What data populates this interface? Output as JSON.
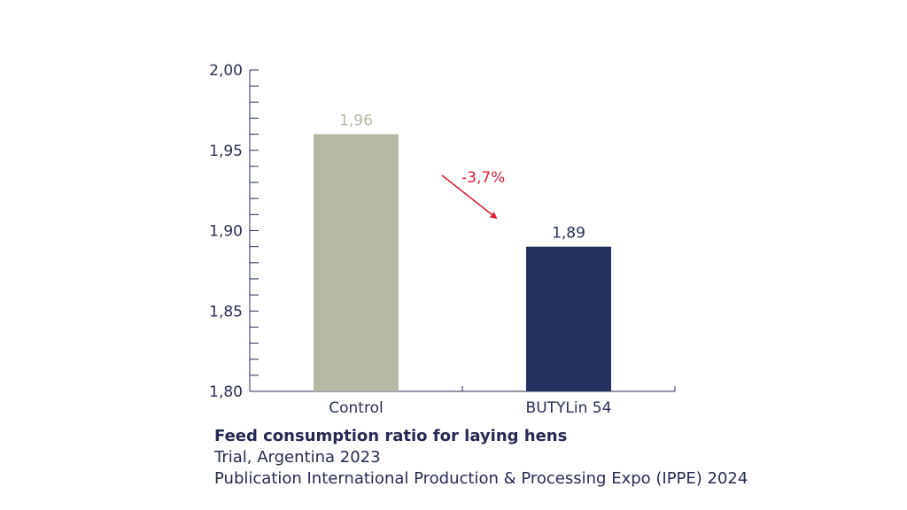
{
  "chart_data": {
    "type": "bar",
    "categories": [
      "Control",
      "BUTYLin 54"
    ],
    "values": [
      1.96,
      1.89
    ],
    "value_labels": [
      "1,96",
      "1,89"
    ],
    "bar_colors": [
      "#b5b9a3",
      "#25305c"
    ],
    "value_label_colors": [
      "#b5b9a3",
      "#25305c"
    ],
    "ylim": [
      1.8,
      2.0
    ],
    "yticks": [
      1.8,
      1.85,
      1.9,
      1.95,
      2.0
    ],
    "ytick_labels": [
      "1,80",
      "1,85",
      "1,90",
      "1,95",
      "2,00"
    ],
    "minor_tick_step": 0.01,
    "grid": false,
    "annotation": {
      "text": "-3,7%",
      "color": "#e01e37",
      "from": "Control",
      "to": "BUTYLin 54"
    },
    "xlabel": "",
    "ylabel": ""
  },
  "caption": {
    "title": "Feed consumption ratio for laying hens",
    "line1": "Trial, Argentina 2023",
    "line2": "Publication International Production & Processing Expo (IPPE) 2024"
  },
  "colors": {
    "axis": "#2a2f55",
    "text": "#262a52"
  }
}
